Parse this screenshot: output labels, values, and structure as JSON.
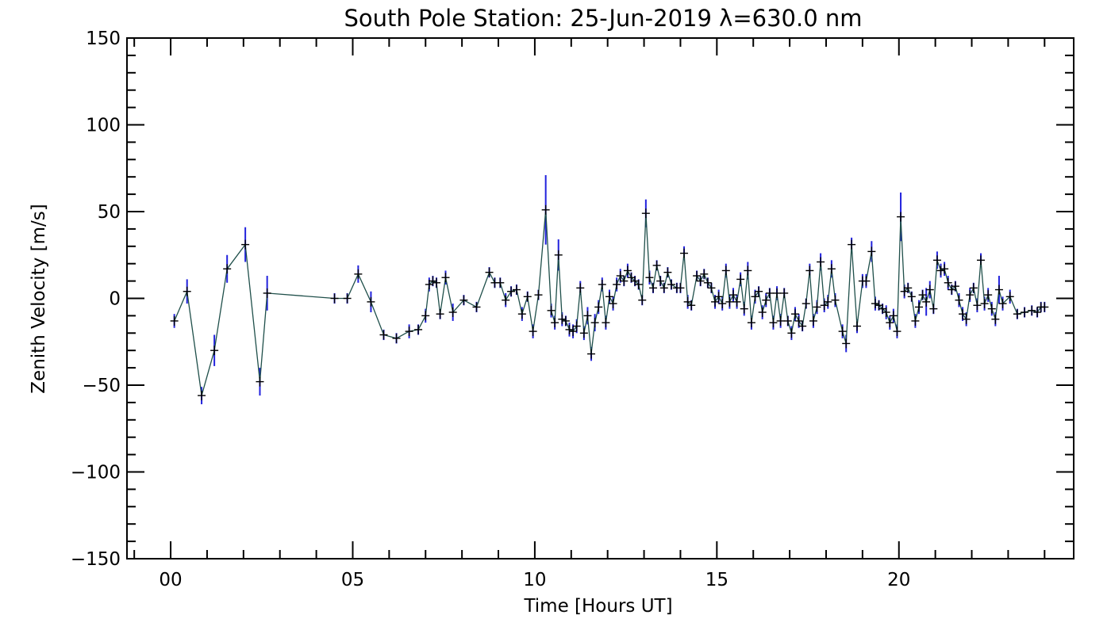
{
  "chart_data": {
    "type": "line",
    "title": "South Pole Station: 25-Jun-2019 λ=630.0 nm",
    "xlabel": "Time [Hours UT]",
    "ylabel": "Zenith Velocity [m/s]",
    "xlim": [
      -1.2,
      24.8
    ],
    "ylim": [
      -150,
      150
    ],
    "grid": false,
    "x_ticks": [
      {
        "value": 0,
        "label": "00"
      },
      {
        "value": 5,
        "label": "05"
      },
      {
        "value": 10,
        "label": "10"
      },
      {
        "value": 15,
        "label": "15"
      },
      {
        "value": 20,
        "label": "20"
      }
    ],
    "y_ticks": [
      {
        "value": 150,
        "label": "150"
      },
      {
        "value": 100,
        "label": "100"
      },
      {
        "value": 50,
        "label": "50"
      },
      {
        "value": 0,
        "label": "0"
      },
      {
        "value": -50,
        "label": "−50"
      },
      {
        "value": -100,
        "label": "−100"
      },
      {
        "value": -150,
        "label": "−150"
      }
    ],
    "colors": {
      "line": "#1f4f4a",
      "marker": "#000000",
      "error_bar": "#2222dd",
      "axes": "#000000"
    },
    "series": [
      {
        "name": "Zenith Velocity",
        "points": [
          [
            0.1,
            -13,
            4
          ],
          [
            0.45,
            4,
            7
          ],
          [
            0.85,
            -56,
            5
          ],
          [
            1.2,
            -30,
            9
          ],
          [
            1.55,
            17,
            8
          ],
          [
            2.05,
            31,
            10
          ],
          [
            2.45,
            -48,
            8
          ],
          [
            2.65,
            3,
            10
          ],
          [
            4.5,
            0,
            3
          ],
          [
            4.85,
            0,
            3
          ],
          [
            5.15,
            14,
            5
          ],
          [
            5.5,
            -2,
            6
          ],
          [
            5.85,
            -21,
            3
          ],
          [
            6.2,
            -23,
            3
          ],
          [
            6.55,
            -19,
            4
          ],
          [
            6.8,
            -18,
            3
          ],
          [
            7.0,
            -10,
            4
          ],
          [
            7.1,
            8,
            4
          ],
          [
            7.2,
            10,
            3
          ],
          [
            7.3,
            9,
            3
          ],
          [
            7.4,
            -9,
            3
          ],
          [
            7.55,
            12,
            4
          ],
          [
            7.75,
            -8,
            5
          ],
          [
            8.05,
            -1,
            3
          ],
          [
            8.4,
            -5,
            3
          ],
          [
            8.75,
            15,
            3
          ],
          [
            8.9,
            9,
            3
          ],
          [
            9.05,
            9,
            3
          ],
          [
            9.2,
            -1,
            4
          ],
          [
            9.35,
            4,
            3
          ],
          [
            9.5,
            5,
            3
          ],
          [
            9.65,
            -9,
            4
          ],
          [
            9.8,
            1,
            3
          ],
          [
            9.95,
            -19,
            4
          ],
          [
            10.1,
            2,
            3
          ],
          [
            10.3,
            51,
            20
          ],
          [
            10.45,
            -7,
            4
          ],
          [
            10.55,
            -14,
            4
          ],
          [
            10.65,
            25,
            9
          ],
          [
            10.75,
            -12,
            4
          ],
          [
            10.85,
            -13,
            3
          ],
          [
            10.95,
            -18,
            4
          ],
          [
            11.05,
            -19,
            4
          ],
          [
            11.15,
            -16,
            4
          ],
          [
            11.25,
            6,
            4
          ],
          [
            11.35,
            -20,
            4
          ],
          [
            11.45,
            -10,
            5
          ],
          [
            11.55,
            -32,
            4
          ],
          [
            11.65,
            -14,
            5
          ],
          [
            11.75,
            -5,
            4
          ],
          [
            11.85,
            8,
            4
          ],
          [
            11.95,
            -14,
            4
          ],
          [
            12.05,
            1,
            4
          ],
          [
            12.15,
            -3,
            4
          ],
          [
            12.25,
            8,
            4
          ],
          [
            12.35,
            13,
            4
          ],
          [
            12.45,
            10,
            3
          ],
          [
            12.55,
            16,
            4
          ],
          [
            12.65,
            12,
            3
          ],
          [
            12.75,
            10,
            3
          ],
          [
            12.85,
            8,
            3
          ],
          [
            12.95,
            -1,
            3
          ],
          [
            13.05,
            49,
            8
          ],
          [
            13.15,
            12,
            4
          ],
          [
            13.25,
            6,
            3
          ],
          [
            13.35,
            19,
            3
          ],
          [
            13.45,
            10,
            3
          ],
          [
            13.55,
            6,
            3
          ],
          [
            13.65,
            15,
            3
          ],
          [
            13.75,
            8,
            3
          ],
          [
            13.9,
            6,
            3
          ],
          [
            14.0,
            6,
            3
          ],
          [
            14.1,
            26,
            4
          ],
          [
            14.2,
            -2,
            4
          ],
          [
            14.3,
            -4,
            3
          ],
          [
            14.45,
            13,
            3
          ],
          [
            14.55,
            10,
            3
          ],
          [
            14.65,
            14,
            3
          ],
          [
            14.75,
            9,
            3
          ],
          [
            14.85,
            6,
            3
          ],
          [
            14.95,
            -2,
            4
          ],
          [
            15.05,
            1,
            4
          ],
          [
            15.15,
            -3,
            4
          ],
          [
            15.25,
            16,
            4
          ],
          [
            15.35,
            -2,
            4
          ],
          [
            15.45,
            2,
            4
          ],
          [
            15.55,
            -2,
            4
          ],
          [
            15.65,
            11,
            4
          ],
          [
            15.75,
            -6,
            4
          ],
          [
            15.85,
            16,
            5
          ],
          [
            15.95,
            -14,
            4
          ],
          [
            16.05,
            1,
            4
          ],
          [
            16.15,
            4,
            3
          ],
          [
            16.25,
            -8,
            4
          ],
          [
            16.35,
            -1,
            4
          ],
          [
            16.45,
            3,
            3
          ],
          [
            16.55,
            -14,
            4
          ],
          [
            16.65,
            3,
            4
          ],
          [
            16.75,
            -13,
            4
          ],
          [
            16.85,
            3,
            3
          ],
          [
            16.95,
            -13,
            3
          ],
          [
            17.05,
            -20,
            4
          ],
          [
            17.15,
            -9,
            4
          ],
          [
            17.25,
            -13,
            4
          ],
          [
            17.35,
            -16,
            3
          ],
          [
            17.45,
            -3,
            3
          ],
          [
            17.55,
            16,
            4
          ],
          [
            17.65,
            -13,
            4
          ],
          [
            17.75,
            -5,
            4
          ],
          [
            17.85,
            21,
            5
          ],
          [
            17.95,
            -4,
            4
          ],
          [
            18.05,
            -2,
            4
          ],
          [
            18.15,
            17,
            5
          ],
          [
            18.25,
            -1,
            4
          ],
          [
            18.45,
            -19,
            4
          ],
          [
            18.55,
            -26,
            5
          ],
          [
            18.7,
            31,
            4
          ],
          [
            18.85,
            -16,
            4
          ],
          [
            19.0,
            10,
            4
          ],
          [
            19.1,
            10,
            4
          ],
          [
            19.25,
            27,
            6
          ],
          [
            19.35,
            -3,
            4
          ],
          [
            19.45,
            -4,
            3
          ],
          [
            19.55,
            -6,
            3
          ],
          [
            19.65,
            -8,
            4
          ],
          [
            19.75,
            -14,
            4
          ],
          [
            19.85,
            -10,
            4
          ],
          [
            19.95,
            -19,
            4
          ],
          [
            20.05,
            47,
            14
          ],
          [
            20.15,
            4,
            4
          ],
          [
            20.25,
            6,
            3
          ],
          [
            20.35,
            1,
            3
          ],
          [
            20.45,
            -13,
            4
          ],
          [
            20.55,
            -5,
            4
          ],
          [
            20.65,
            2,
            3
          ],
          [
            20.75,
            -2,
            8
          ],
          [
            20.85,
            5,
            5
          ],
          [
            20.95,
            -6,
            3
          ],
          [
            21.05,
            22,
            5
          ],
          [
            21.15,
            16,
            4
          ],
          [
            21.25,
            17,
            4
          ],
          [
            21.35,
            9,
            4
          ],
          [
            21.45,
            5,
            3
          ],
          [
            21.55,
            7,
            3
          ],
          [
            21.65,
            -1,
            4
          ],
          [
            21.75,
            -9,
            4
          ],
          [
            21.85,
            -12,
            4
          ],
          [
            21.95,
            2,
            4
          ],
          [
            22.05,
            6,
            3
          ],
          [
            22.15,
            -4,
            4
          ],
          [
            22.25,
            22,
            4
          ],
          [
            22.35,
            -3,
            4
          ],
          [
            22.45,
            2,
            4
          ],
          [
            22.55,
            -6,
            4
          ],
          [
            22.65,
            -12,
            4
          ],
          [
            22.75,
            5,
            8
          ],
          [
            22.85,
            -3,
            4
          ],
          [
            23.05,
            1,
            4
          ],
          [
            23.25,
            -9,
            3
          ],
          [
            23.45,
            -8,
            3
          ],
          [
            23.65,
            -7,
            3
          ],
          [
            23.8,
            -8,
            3
          ],
          [
            23.9,
            -5,
            3
          ],
          [
            24.0,
            -5,
            3
          ]
        ]
      }
    ]
  }
}
